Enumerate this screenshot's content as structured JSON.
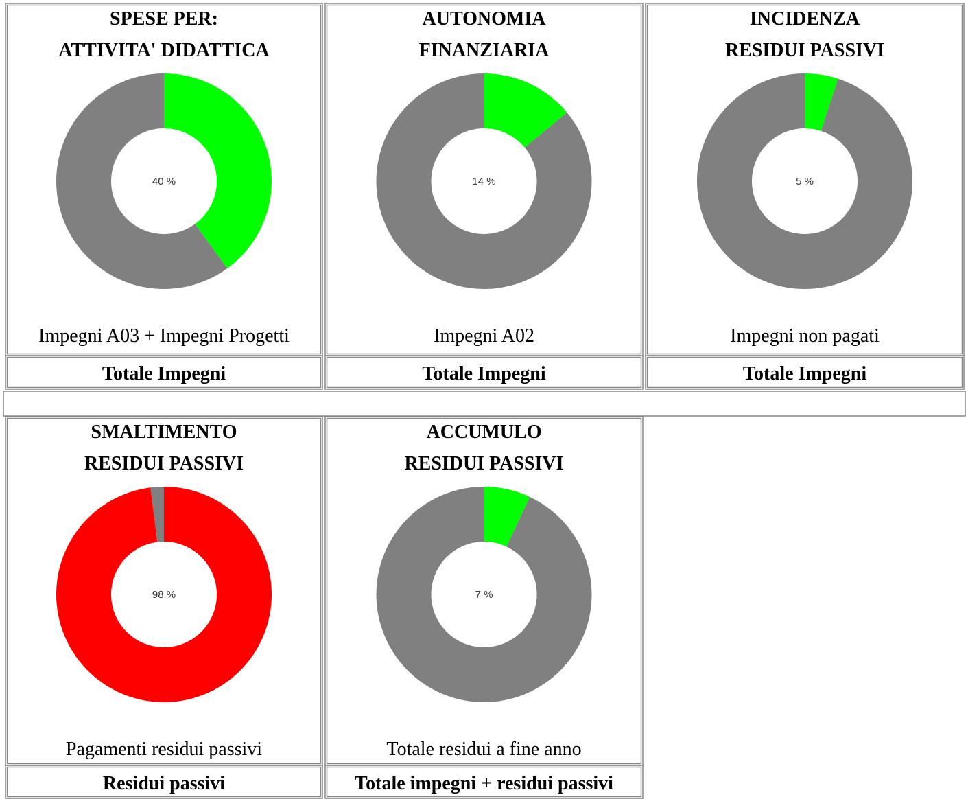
{
  "chart_data": [
    {
      "type": "donut",
      "title": [
        "SPESE PER:",
        "ATTIVITA' DIDATTICA"
      ],
      "values": [
        40,
        60
      ],
      "colors": [
        "#00ff00",
        "#808080"
      ],
      "label": "40 %",
      "numerator": "Impegni A03 + Impegni Progetti",
      "denominator": "Totale Impegni"
    },
    {
      "type": "donut",
      "title": [
        "AUTONOMIA",
        "FINANZIARIA"
      ],
      "values": [
        14,
        86
      ],
      "colors": [
        "#00ff00",
        "#808080"
      ],
      "label": "14 %",
      "numerator": "Impegni A02",
      "denominator": "Totale Impegni"
    },
    {
      "type": "donut",
      "title": [
        "INCIDENZA",
        "RESIDUI PASSIVI"
      ],
      "values": [
        5,
        95
      ],
      "colors": [
        "#00ff00",
        "#808080"
      ],
      "label": "5 %",
      "numerator": "Impegni non pagati",
      "denominator": "Totale Impegni"
    },
    {
      "type": "donut",
      "title": [
        "SMALTIMENTO",
        "RESIDUI PASSIVI"
      ],
      "values": [
        98,
        2
      ],
      "colors": [
        "#ff0000",
        "#808080"
      ],
      "label": "98 %",
      "numerator": "Pagamenti residui passivi",
      "denominator": "Residui passivi"
    },
    {
      "type": "donut",
      "title": [
        "ACCUMULO",
        "RESIDUI PASSIVI"
      ],
      "values": [
        7,
        93
      ],
      "colors": [
        "#00ff00",
        "#808080"
      ],
      "label": "7 %",
      "numerator": "Totale residui a fine anno",
      "denominator": "Totale impegni + residui passivi"
    }
  ]
}
